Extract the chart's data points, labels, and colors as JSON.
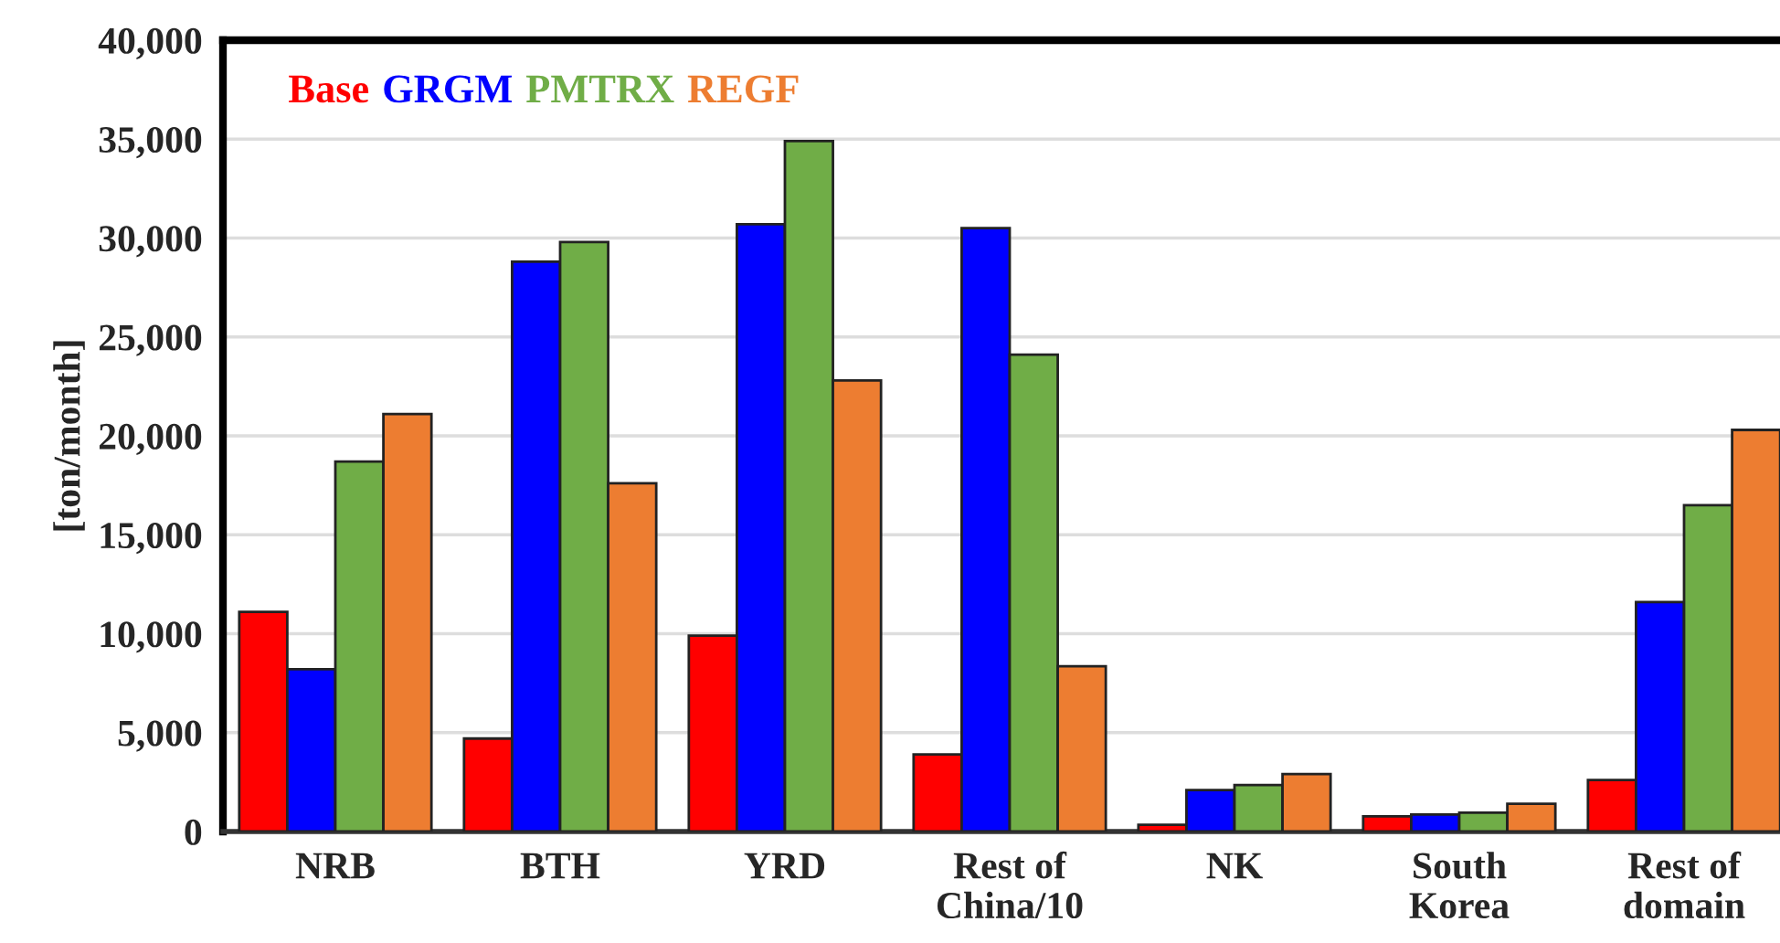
{
  "chart_data": {
    "type": "bar",
    "ylabel": "[ton/month]",
    "categories": [
      "NRB",
      "BTH",
      "YRD",
      "Rest of\nChina/10",
      "NK",
      "South\nKorea",
      "Rest of\ndomain"
    ],
    "series": [
      {
        "name": "Base",
        "color": "#ff0000",
        "values": [
          11100,
          4700,
          9900,
          3900,
          340,
          770,
          2600
        ]
      },
      {
        "name": "GRGM",
        "color": "#0000ff",
        "values": [
          8200,
          28800,
          30700,
          30500,
          2100,
          860,
          11600
        ]
      },
      {
        "name": "PMTRX",
        "color": "#70ad47",
        "values": [
          18700,
          29800,
          34900,
          24100,
          2350,
          950,
          16500
        ]
      },
      {
        "name": "REGF",
        "color": "#ed7d31",
        "values": [
          21100,
          17600,
          22800,
          8350,
          2900,
          1400,
          20300
        ]
      }
    ],
    "ylim": [
      0,
      40000
    ],
    "yticks": [
      {
        "value": 0,
        "label": "0"
      },
      {
        "value": 5000,
        "label": "5,000"
      },
      {
        "value": 10000,
        "label": "10,000"
      },
      {
        "value": 15000,
        "label": "15,000"
      },
      {
        "value": 20000,
        "label": "20,000"
      },
      {
        "value": 25000,
        "label": "25,000"
      },
      {
        "value": 30000,
        "label": "30,000"
      },
      {
        "value": 35000,
        "label": "35,000"
      },
      {
        "value": 40000,
        "label": "40,000"
      }
    ],
    "grid": "y",
    "legend": "top left"
  }
}
